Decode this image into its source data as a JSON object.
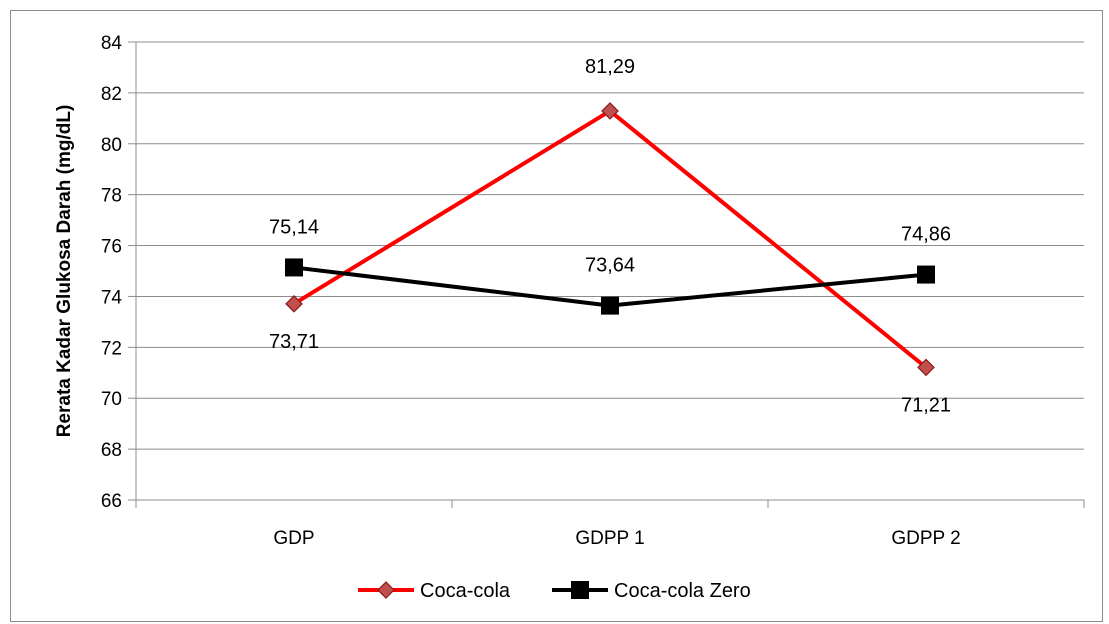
{
  "chart_data": {
    "type": "line",
    "title": "",
    "xlabel": "",
    "ylabel": "Rerata Kadar Glukosa Darah (mg/dL)",
    "categories": [
      "GDP",
      "GDPP 1",
      "GDPP 2"
    ],
    "ylim": [
      66,
      84
    ],
    "yticks": [
      66,
      68,
      70,
      72,
      74,
      76,
      78,
      80,
      82,
      84
    ],
    "grid": true,
    "legend_position": "bottom",
    "series": [
      {
        "name": "Coca-cola",
        "values": [
          73.71,
          81.29,
          71.21
        ],
        "labels": [
          "73,71",
          "81,29",
          "71,21"
        ],
        "color": "#ff0000",
        "marker": "diamond"
      },
      {
        "name": "Coca-cola Zero",
        "values": [
          75.14,
          73.64,
          74.86
        ],
        "labels": [
          "75,14",
          "73,64",
          "74,86"
        ],
        "color": "#000000",
        "marker": "square"
      }
    ]
  }
}
